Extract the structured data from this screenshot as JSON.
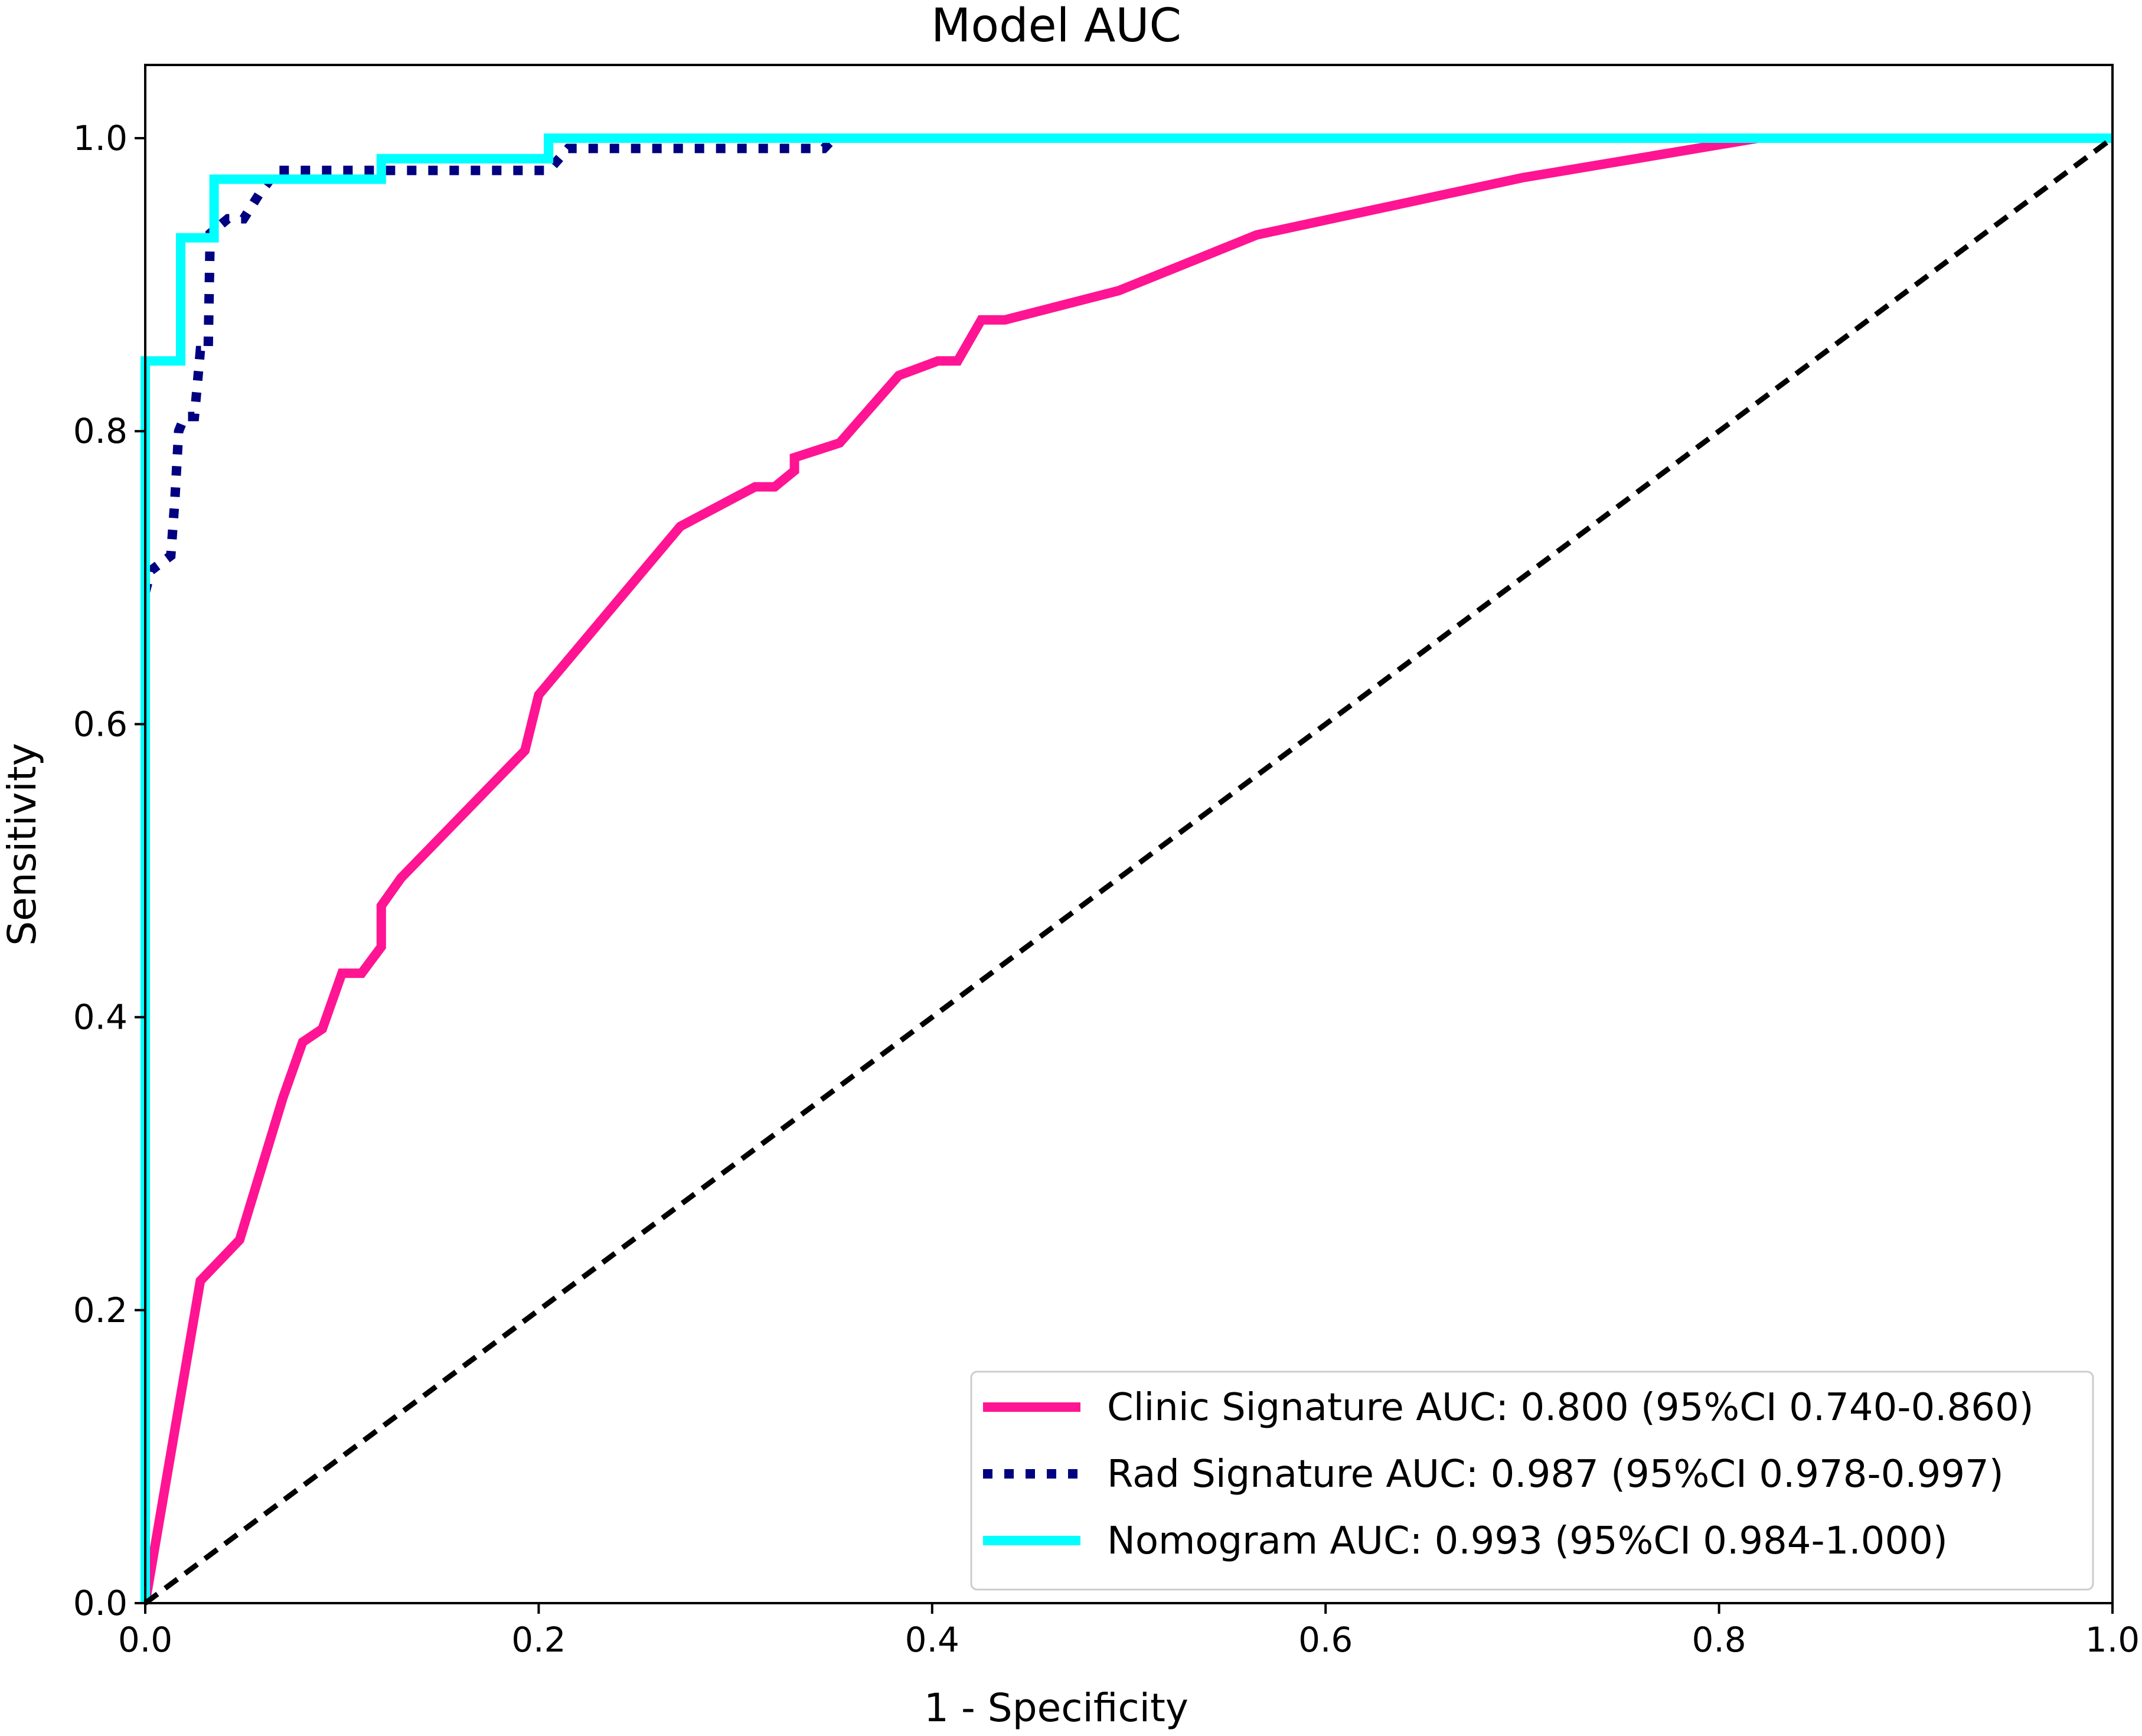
{
  "chart_data": {
    "type": "line",
    "title": "Model AUC",
    "xlabel": "1 - Specificity",
    "ylabel": "Sensitivity",
    "xlim": [
      0.0,
      1.0
    ],
    "ylim": [
      0.0,
      1.05
    ],
    "x_ticks": [
      {
        "value": 0.0,
        "label": "0.0"
      },
      {
        "value": 0.2,
        "label": "0.2"
      },
      {
        "value": 0.4,
        "label": "0.4"
      },
      {
        "value": 0.6,
        "label": "0.6"
      },
      {
        "value": 0.8,
        "label": "0.8"
      },
      {
        "value": 1.0,
        "label": "1.0"
      }
    ],
    "y_ticks": [
      {
        "value": 0.0,
        "label": "0.0"
      },
      {
        "value": 0.2,
        "label": "0.2"
      },
      {
        "value": 0.4,
        "label": "0.4"
      },
      {
        "value": 0.6,
        "label": "0.6"
      },
      {
        "value": 0.8,
        "label": "0.8"
      },
      {
        "value": 1.0,
        "label": "1.0"
      }
    ],
    "grid": false,
    "legend_position": "lower-right",
    "series": [
      {
        "name": "Clinic Signature AUC: 0.800 (95%CI 0.740-0.860)",
        "color": "#ff1493",
        "style": "solid",
        "points": [
          [
            0.0,
            0.0
          ],
          [
            0.028,
            0.22
          ],
          [
            0.048,
            0.248
          ],
          [
            0.07,
            0.345
          ],
          [
            0.08,
            0.383
          ],
          [
            0.09,
            0.392
          ],
          [
            0.1,
            0.43
          ],
          [
            0.11,
            0.43
          ],
          [
            0.12,
            0.448
          ],
          [
            0.12,
            0.476
          ],
          [
            0.13,
            0.495
          ],
          [
            0.193,
            0.582
          ],
          [
            0.2,
            0.62
          ],
          [
            0.272,
            0.735
          ],
          [
            0.31,
            0.762
          ],
          [
            0.32,
            0.762
          ],
          [
            0.33,
            0.773
          ],
          [
            0.33,
            0.782
          ],
          [
            0.353,
            0.792
          ],
          [
            0.383,
            0.838
          ],
          [
            0.403,
            0.848
          ],
          [
            0.413,
            0.848
          ],
          [
            0.425,
            0.876
          ],
          [
            0.437,
            0.876
          ],
          [
            0.495,
            0.896
          ],
          [
            0.565,
            0.934
          ],
          [
            0.7,
            0.973
          ],
          [
            0.82,
            1.0
          ],
          [
            1.0,
            1.0
          ]
        ]
      },
      {
        "name": "Rad Signature AUC: 0.987 (95%CI 0.978-0.997)",
        "color": "#000080",
        "style": "dotted",
        "points": [
          [
            0.0,
            0.69
          ],
          [
            0.003,
            0.705
          ],
          [
            0.013,
            0.715
          ],
          [
            0.015,
            0.752
          ],
          [
            0.017,
            0.8
          ],
          [
            0.02,
            0.81
          ],
          [
            0.025,
            0.81
          ],
          [
            0.028,
            0.855
          ],
          [
            0.032,
            0.855
          ],
          [
            0.033,
            0.935
          ],
          [
            0.042,
            0.945
          ],
          [
            0.05,
            0.945
          ],
          [
            0.058,
            0.962
          ],
          [
            0.067,
            0.978
          ],
          [
            0.11,
            0.978
          ],
          [
            0.12,
            0.978
          ],
          [
            0.205,
            0.978
          ],
          [
            0.215,
            0.993
          ],
          [
            0.345,
            0.993
          ],
          [
            0.35,
            1.0
          ],
          [
            1.0,
            1.0
          ]
        ]
      },
      {
        "name": "Nomogram AUC: 0.993 (95%CI 0.984-1.000)",
        "color": "#00ffff",
        "style": "solid",
        "points": [
          [
            0.0,
            0.0
          ],
          [
            0.0,
            0.848
          ],
          [
            0.018,
            0.848
          ],
          [
            0.018,
            0.932
          ],
          [
            0.035,
            0.932
          ],
          [
            0.035,
            0.972
          ],
          [
            0.12,
            0.972
          ],
          [
            0.12,
            0.986
          ],
          [
            0.205,
            0.986
          ],
          [
            0.205,
            1.0
          ],
          [
            1.0,
            1.0
          ]
        ]
      },
      {
        "name": "",
        "color": "#000000",
        "style": "dashed",
        "points": [
          [
            0.0,
            0.0
          ],
          [
            1.0,
            1.0
          ]
        ]
      }
    ]
  }
}
